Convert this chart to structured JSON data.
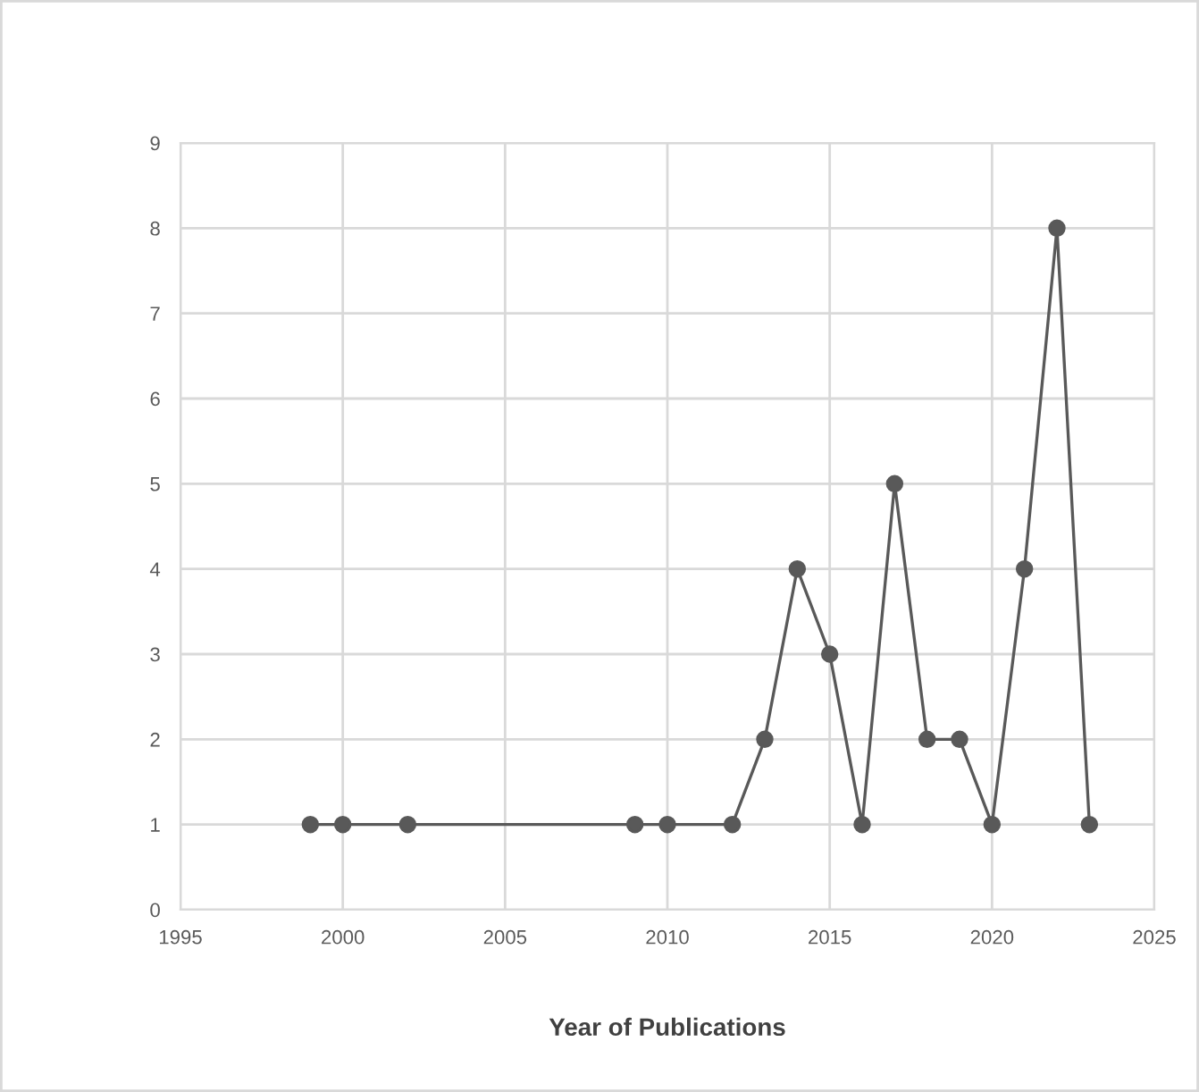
{
  "chart_data": {
    "type": "line",
    "xlabel": "Year of Publications",
    "x": [
      1999,
      2000,
      2002,
      2009,
      2010,
      2012,
      2013,
      2014,
      2015,
      2016,
      2017,
      2018,
      2019,
      2020,
      2021,
      2022,
      2023
    ],
    "series": [
      {
        "color": "#595959",
        "values": [
          1,
          1,
          1,
          1,
          1,
          1,
          2,
          4,
          3,
          1,
          5,
          2,
          2,
          1,
          4,
          8,
          1
        ]
      }
    ],
    "xlim": [
      1995,
      2025
    ],
    "xticks": [
      1995,
      2000,
      2005,
      2010,
      2015,
      2020,
      2025
    ],
    "ylim": [
      0,
      9
    ],
    "yticks": [
      0,
      1,
      2,
      3,
      4,
      5,
      6,
      7,
      8,
      9
    ],
    "grid": true,
    "marker": "circle",
    "line_style": "solid",
    "legend": false
  }
}
